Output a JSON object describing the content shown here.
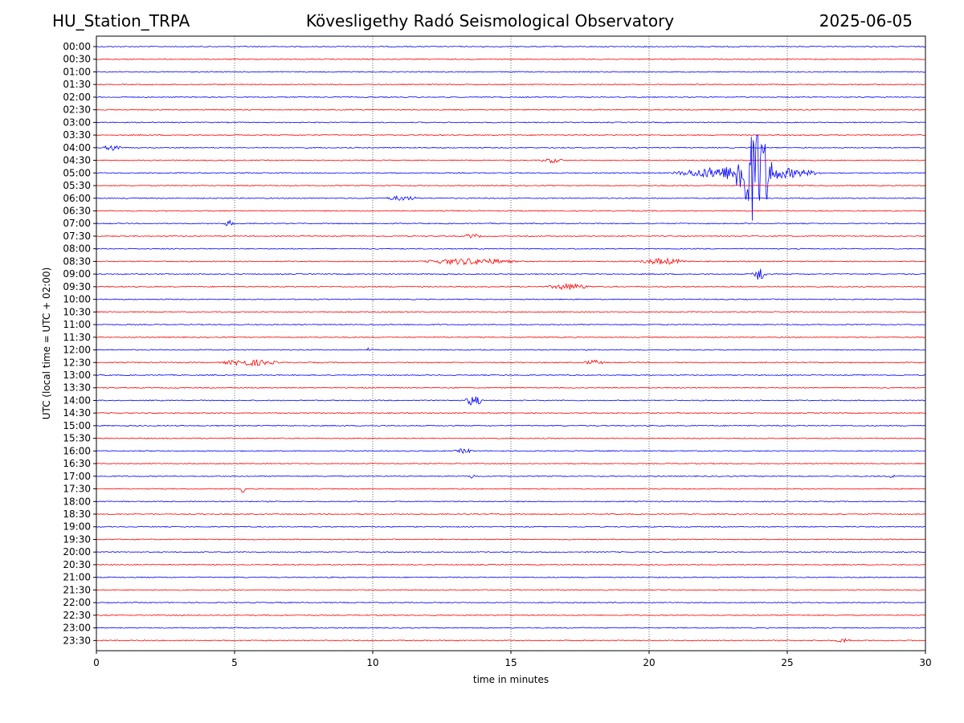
{
  "header": {
    "station": "HU_Station_TRPA",
    "title": "Kövesligethy Radó Seismological Observatory",
    "date": "2025-06-05"
  },
  "chart_data": {
    "type": "line",
    "subtype": "helicorder",
    "xlabel": "time in minutes",
    "ylabel": "UTC (local time = UTC + 02:00)",
    "xlim": [
      0,
      30
    ],
    "x_ticks": [
      "0",
      "5",
      "10",
      "15",
      "20",
      "25",
      "30"
    ],
    "grid": "vertical dotted at 5, 10, 15, 20, 25",
    "colors": [
      "#0000ff",
      "#ff0000"
    ],
    "rows": [
      "00:00",
      "00:30",
      "01:00",
      "01:30",
      "02:00",
      "02:30",
      "03:00",
      "03:30",
      "04:00",
      "04:30",
      "05:00",
      "05:30",
      "06:00",
      "06:30",
      "07:00",
      "07:30",
      "08:00",
      "08:30",
      "09:00",
      "09:30",
      "10:00",
      "10:30",
      "11:00",
      "11:30",
      "12:00",
      "12:30",
      "13:00",
      "13:30",
      "14:00",
      "14:30",
      "15:00",
      "15:30",
      "16:00",
      "16:30",
      "17:00",
      "17:30",
      "18:00",
      "18:30",
      "19:00",
      "19:30",
      "20:00",
      "20:30",
      "21:00",
      "21:30",
      "22:00",
      "22:30",
      "23:00",
      "23:30"
    ],
    "events": [
      {
        "row": "04:00",
        "start_min": 0.2,
        "end_min": 1.0,
        "amplitude": 4
      },
      {
        "row": "04:30",
        "start_min": 16.0,
        "end_min": 17.0,
        "amplitude": 3
      },
      {
        "row": "05:00",
        "start_min": 20.6,
        "end_min": 26.5,
        "amplitude": 9
      },
      {
        "row": "05:00",
        "start_min": 23.0,
        "end_min": 24.6,
        "amplitude": 60
      },
      {
        "row": "06:00",
        "start_min": 10.3,
        "end_min": 11.8,
        "amplitude": 3
      },
      {
        "row": "07:00",
        "start_min": 4.6,
        "end_min": 5.0,
        "amplitude": 4
      },
      {
        "row": "07:30",
        "start_min": 13.2,
        "end_min": 14.0,
        "amplitude": 3
      },
      {
        "row": "08:30",
        "start_min": 11.5,
        "end_min": 15.5,
        "amplitude": 4
      },
      {
        "row": "08:30",
        "start_min": 19.5,
        "end_min": 21.5,
        "amplitude": 4
      },
      {
        "row": "09:00",
        "start_min": 23.7,
        "end_min": 24.3,
        "amplitude": 9
      },
      {
        "row": "09:30",
        "start_min": 16.2,
        "end_min": 18.0,
        "amplitude": 4
      },
      {
        "row": "12:00",
        "start_min": 9.8,
        "end_min": 10.0,
        "amplitude": 5
      },
      {
        "row": "12:30",
        "start_min": 4.3,
        "end_min": 6.8,
        "amplitude": 4
      },
      {
        "row": "12:30",
        "start_min": 17.5,
        "end_min": 18.5,
        "amplitude": 3
      },
      {
        "row": "14:00",
        "start_min": 13.3,
        "end_min": 14.0,
        "amplitude": 7
      },
      {
        "row": "16:00",
        "start_min": 12.9,
        "end_min": 13.7,
        "amplitude": 3
      },
      {
        "row": "17:00",
        "start_min": 13.5,
        "end_min": 13.7,
        "amplitude": 5
      },
      {
        "row": "17:00",
        "start_min": 28.7,
        "end_min": 28.9,
        "amplitude": 4
      },
      {
        "row": "17:30",
        "start_min": 5.2,
        "end_min": 5.4,
        "amplitude": 5
      },
      {
        "row": "23:30",
        "start_min": 26.7,
        "end_min": 27.4,
        "amplitude": 3
      }
    ]
  }
}
